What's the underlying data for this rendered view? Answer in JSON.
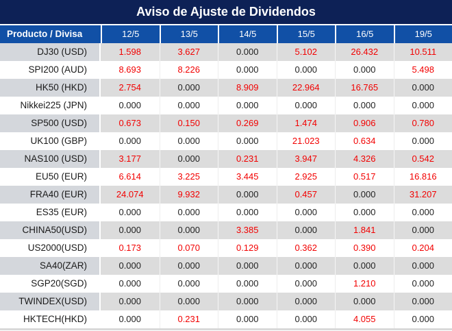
{
  "title": "Aviso de Ajuste de Dividendos",
  "header": {
    "product_label": "Producto / Divisa",
    "dates": [
      "12/5",
      "13/5",
      "14/5",
      "15/5",
      "16/5",
      "19/5"
    ]
  },
  "zero_value": "0.000",
  "colors": {
    "title_bg": "#0d2156",
    "header_bg": "#1150a6",
    "row_alt_bg": "#dcdcdc",
    "label_alt_bg": "#d4d7dc",
    "bottom_strip": "#d9d9d9",
    "value_nonzero": "#f20000",
    "value_zero": "#1f1f1f"
  },
  "rows": [
    {
      "product": "DJ30 (USD)",
      "values": [
        "1.598",
        "3.627",
        "0.000",
        "5.102",
        "26.432",
        "10.511"
      ]
    },
    {
      "product": "SPI200 (AUD)",
      "values": [
        "8.693",
        "8.226",
        "0.000",
        "0.000",
        "0.000",
        "5.498"
      ]
    },
    {
      "product": "HK50 (HKD)",
      "values": [
        "2.754",
        "0.000",
        "8.909",
        "22.964",
        "16.765",
        "0.000"
      ]
    },
    {
      "product": "Nikkei225 (JPN)",
      "values": [
        "0.000",
        "0.000",
        "0.000",
        "0.000",
        "0.000",
        "0.000"
      ]
    },
    {
      "product": "SP500 (USD)",
      "values": [
        "0.673",
        "0.150",
        "0.269",
        "1.474",
        "0.906",
        "0.780"
      ]
    },
    {
      "product": "UK100 (GBP)",
      "values": [
        "0.000",
        "0.000",
        "0.000",
        "21.023",
        "0.634",
        "0.000"
      ]
    },
    {
      "product": "NAS100 (USD)",
      "values": [
        "3.177",
        "0.000",
        "0.231",
        "3.947",
        "4.326",
        "0.542"
      ]
    },
    {
      "product": "EU50 (EUR)",
      "values": [
        "6.614",
        "3.225",
        "3.445",
        "2.925",
        "0.517",
        "16.816"
      ]
    },
    {
      "product": "FRA40 (EUR)",
      "values": [
        "24.074",
        "9.932",
        "0.000",
        "0.457",
        "0.000",
        "31.207"
      ]
    },
    {
      "product": "ES35 (EUR)",
      "values": [
        "0.000",
        "0.000",
        "0.000",
        "0.000",
        "0.000",
        "0.000"
      ]
    },
    {
      "product": "CHINA50(USD)",
      "values": [
        "0.000",
        "0.000",
        "3.385",
        "0.000",
        "1.841",
        "0.000"
      ]
    },
    {
      "product": "US2000(USD)",
      "values": [
        "0.173",
        "0.070",
        "0.129",
        "0.362",
        "0.390",
        "0.204"
      ]
    },
    {
      "product": "SA40(ZAR)",
      "values": [
        "0.000",
        "0.000",
        "0.000",
        "0.000",
        "0.000",
        "0.000"
      ]
    },
    {
      "product": "SGP20(SGD)",
      "values": [
        "0.000",
        "0.000",
        "0.000",
        "0.000",
        "1.210",
        "0.000"
      ]
    },
    {
      "product": "TWINDEX(USD)",
      "values": [
        "0.000",
        "0.000",
        "0.000",
        "0.000",
        "0.000",
        "0.000"
      ]
    },
    {
      "product": "HKTECH(HKD)",
      "values": [
        "0.000",
        "0.231",
        "0.000",
        "0.000",
        "4.055",
        "0.000"
      ]
    }
  ]
}
